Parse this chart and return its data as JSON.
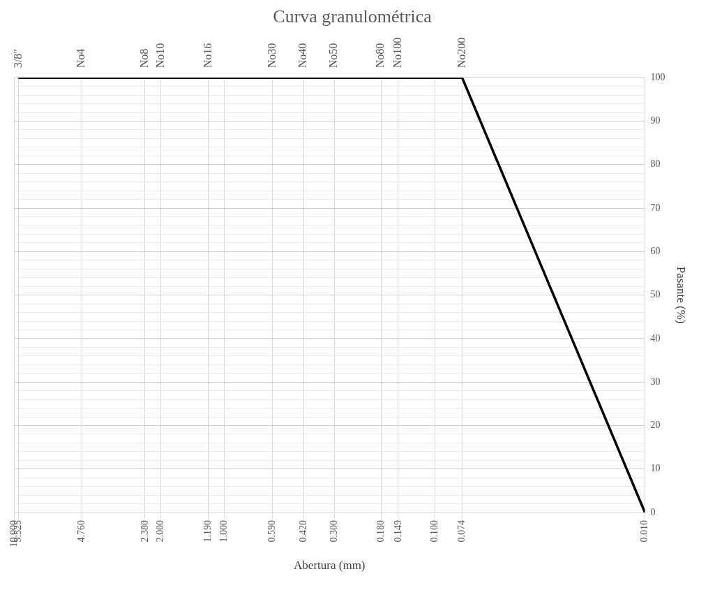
{
  "chart_data": {
    "type": "line",
    "title": "Curva granulométrica",
    "xlabel": "Abertura (mm)",
    "ylabel": "Pasante (%)",
    "log": "x",
    "x": [
      9.525,
      4.76,
      2.38,
      2.0,
      1.19,
      0.59,
      0.42,
      0.3,
      0.18,
      0.149,
      0.074,
      0.01
    ],
    "series": [
      {
        "color": "#000000",
        "values": [
          100,
          100,
          100,
          100,
          100,
          100,
          100,
          100,
          100,
          100,
          100,
          0
        ]
      }
    ],
    "xlim": [
      10,
      0.01
    ],
    "xticks": [
      {
        "value": 10,
        "label": "10.000"
      },
      {
        "value": 9.525,
        "label": "9.525"
      },
      {
        "value": 4.76,
        "label": "4.760"
      },
      {
        "value": 2.38,
        "label": "2.380"
      },
      {
        "value": 2.0,
        "label": "2.000"
      },
      {
        "value": 1.19,
        "label": "1.190"
      },
      {
        "value": 1.0,
        "label": "1.000"
      },
      {
        "value": 0.59,
        "label": "0.590"
      },
      {
        "value": 0.42,
        "label": "0.420"
      },
      {
        "value": 0.3,
        "label": "0.300"
      },
      {
        "value": 0.18,
        "label": "0.180"
      },
      {
        "value": 0.149,
        "label": "0.149"
      },
      {
        "value": 0.1,
        "label": "0.100"
      },
      {
        "value": 0.074,
        "label": "0.074"
      },
      {
        "value": 0.01,
        "label": "0.010"
      }
    ],
    "annotations": [
      {
        "text": "3/8\"",
        "x": 9.525,
        "y": 100
      },
      {
        "text": "No4",
        "x": 4.76,
        "y": 100
      },
      {
        "text": "No8",
        "x": 2.38,
        "y": 100
      },
      {
        "text": "No10",
        "x": 2.0,
        "y": 100
      },
      {
        "text": "No16",
        "x": 1.19,
        "y": 100
      },
      {
        "text": "No30",
        "x": 0.59,
        "y": 100
      },
      {
        "text": "No40",
        "x": 0.42,
        "y": 100
      },
      {
        "text": "No50",
        "x": 0.3,
        "y": 100
      },
      {
        "text": "No80",
        "x": 0.18,
        "y": 100
      },
      {
        "text": "No100",
        "x": 0.149,
        "y": 100
      },
      {
        "text": "No200",
        "x": 0.074,
        "y": 100
      }
    ],
    "ylim": [
      0,
      100
    ],
    "yticks": [
      0,
      {
        "value": 2,
        "label": null
      },
      {
        "value": 4,
        "label": null
      },
      {
        "value": 6,
        "label": null
      },
      {
        "value": 8,
        "label": null
      },
      10,
      {
        "value": 12,
        "label": null
      },
      {
        "value": 14,
        "label": null
      },
      {
        "value": 16,
        "label": null
      },
      {
        "value": 18,
        "label": null
      },
      20,
      {
        "value": 22,
        "label": null
      },
      {
        "value": 24,
        "label": null
      },
      {
        "value": 26,
        "label": null
      },
      {
        "value": 28,
        "label": null
      },
      30,
      {
        "value": 32,
        "label": null
      },
      {
        "value": 34,
        "label": null
      },
      {
        "value": 36,
        "label": null
      },
      {
        "value": 38,
        "label": null
      },
      40,
      {
        "value": 42,
        "label": null
      },
      {
        "value": 44,
        "label": null
      },
      {
        "value": 46,
        "label": null
      },
      {
        "value": 48,
        "label": null
      },
      50,
      {
        "value": 52,
        "label": null
      },
      {
        "value": 54,
        "label": null
      },
      {
        "value": 56,
        "label": null
      },
      {
        "value": 58,
        "label": null
      },
      60,
      {
        "value": 62,
        "label": null
      },
      {
        "value": 64,
        "label": null
      },
      {
        "value": 66,
        "label": null
      },
      {
        "value": 68,
        "label": null
      },
      70,
      {
        "value": 72,
        "label": null
      },
      {
        "value": 74,
        "label": null
      },
      {
        "value": 76,
        "label": null
      },
      {
        "value": 78,
        "label": null
      },
      80,
      {
        "value": 82,
        "label": null
      },
      {
        "value": 84,
        "label": null
      },
      {
        "value": 86,
        "label": null
      },
      {
        "value": 88,
        "label": null
      },
      90,
      {
        "value": 92,
        "label": null
      },
      {
        "value": 94,
        "label": null
      },
      {
        "value": 96,
        "label": null
      },
      {
        "value": 98,
        "label": null
      },
      100
    ],
    "grid": true,
    "legend": false,
    "marker": "none",
    "line_style": "solid"
  }
}
